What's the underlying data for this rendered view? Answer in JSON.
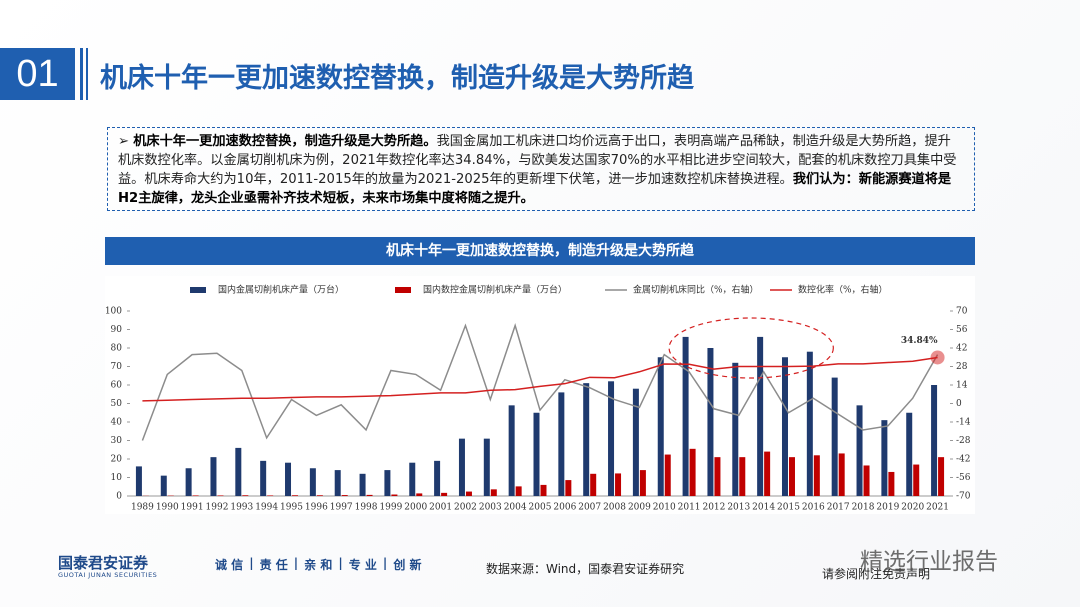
{
  "header": {
    "number": "01",
    "title": "机床十年一更加速数控替换，制造升级是大势所趋"
  },
  "summary": {
    "lead": "机床十年一更加速数控替换，制造升级是大势所趋。",
    "body": "我国金属加工机床进口均价远高于出口，表明高端产品稀缺，制造升级是大势所趋，提升机床数控化率。以金属切削机床为例，2021年数控化率达34.84%，与欧美发达国家70%的水平相比进步空间较大，配套的机床数控刀具集中受益。机床寿命大约为10年，2011-2015年的放量为2021-2025年的更新埋下伏笔，进一步加速数控机床替换进程。",
    "conclusion": "我们认为：新能源赛道将是H2主旋律，龙头企业亟需补齐技术短板，未来市场集中度将随之提升。"
  },
  "chart_data": {
    "type": "bar",
    "title": "机床十年一更加速数控替换，制造升级是大势所趋",
    "categories": [
      "1989",
      "1990",
      "1991",
      "1992",
      "1993",
      "1994",
      "1995",
      "1996",
      "1997",
      "1998",
      "1999",
      "2000",
      "2001",
      "2002",
      "2003",
      "2004",
      "2005",
      "2006",
      "2007",
      "2008",
      "2009",
      "2010",
      "2011",
      "2012",
      "2013",
      "2014",
      "2015",
      "2016",
      "2017",
      "2018",
      "2019",
      "2020",
      "2021"
    ],
    "series": [
      {
        "name": "国内金属切削机床产量（万台）",
        "type": "bar",
        "color": "#1f3a6e",
        "values": [
          16,
          11,
          15,
          21,
          26,
          19,
          18,
          15,
          14,
          12,
          14,
          18,
          19,
          31,
          31,
          49,
          45,
          56,
          61,
          62,
          58,
          75,
          86,
          80,
          72,
          86,
          75,
          78,
          64,
          49,
          41,
          45,
          60
        ]
      },
      {
        "name": "国内数控金属切削机床产量（万台）",
        "type": "bar",
        "color": "#c00000",
        "values": [
          0.1,
          0.2,
          0.3,
          0.3,
          0.4,
          0.3,
          0.4,
          0.4,
          0.5,
          0.6,
          0.8,
          1.4,
          1.7,
          2.4,
          3.6,
          5.2,
          6,
          8.6,
          12,
          12.2,
          14,
          22.4,
          25.5,
          21,
          21,
          24,
          21,
          22,
          23,
          16.5,
          13,
          17,
          21
        ]
      },
      {
        "name": "金属切削机床同比（%，右轴）",
        "type": "line",
        "axis": "y2",
        "color": "#8c8c8c",
        "values": [
          -28,
          22,
          37,
          38,
          25,
          -26,
          3,
          -9,
          -1,
          -20,
          25,
          22,
          10,
          59,
          3,
          59,
          -5,
          18,
          12,
          3,
          -3,
          37,
          24,
          -4,
          -9,
          24,
          -7,
          4,
          -8,
          -20,
          -17,
          4,
          37
        ]
      },
      {
        "name": "数控化率（%，右轴）",
        "type": "line",
        "axis": "y2",
        "color": "#d42020",
        "values": [
          2,
          2.5,
          3,
          3.5,
          4,
          4,
          4.5,
          5,
          5,
          5.5,
          6,
          7,
          8,
          8,
          10,
          10.5,
          13,
          15,
          19.8,
          19.5,
          24,
          29.9,
          29.7,
          26,
          28,
          28,
          28,
          28.3,
          30,
          30,
          31,
          32,
          34.84
        ],
        "value_labels": [
          null,
          null,
          null,
          null,
          null,
          null,
          null,
          null,
          null,
          null,
          null,
          null,
          null,
          null,
          null,
          null,
          null,
          null,
          null,
          null,
          null,
          null,
          null,
          null,
          null,
          null,
          null,
          null,
          null,
          null,
          null,
          null,
          "34.84%"
        ]
      }
    ],
    "ylim": [
      0,
      100
    ],
    "yticks": [
      0,
      10,
      20,
      30,
      40,
      50,
      60,
      70,
      80,
      90,
      100
    ],
    "y2lim": [
      -70,
      70
    ],
    "y2ticks": [
      -70,
      -56,
      -42,
      -28,
      -14,
      0,
      14,
      28,
      42,
      56,
      70
    ],
    "legend": "top",
    "grid": false
  },
  "footer": {
    "company": "国泰君安证券",
    "company_en": "GUOTAI JUNAN SECURITIES",
    "slogan": [
      "诚 信",
      "|",
      "责 任",
      "|",
      "亲 和",
      "|",
      "专 业",
      "|",
      "创 新"
    ],
    "source": "数据来源：Wind，国泰君安证券研究",
    "disclaimer": "请参阅附注免责声明",
    "watermark": "精选行业报告"
  }
}
